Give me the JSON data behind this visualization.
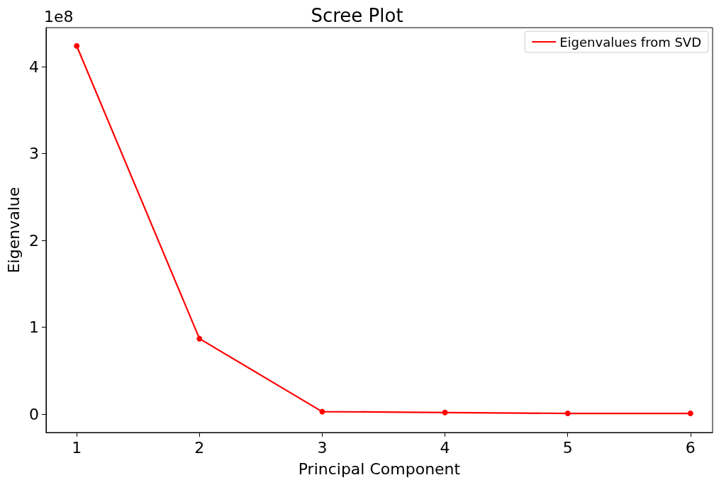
{
  "chart_data": {
    "type": "line",
    "title": "Scree Plot",
    "xlabel": "Principal Component",
    "ylabel": "Eigenvalue",
    "x": [
      1,
      2,
      3,
      4,
      5,
      6
    ],
    "series": [
      {
        "name": "Eigenvalues from SVD",
        "color": "#ff0000",
        "values": [
          4.24,
          0.87,
          0.03,
          0.02,
          0.01,
          0.01
        ]
      }
    ],
    "xlim": [
      0.75,
      6.18
    ],
    "xticks": [
      1,
      2,
      3,
      4,
      5,
      6
    ],
    "ylim": [
      -0.21,
      4.45
    ],
    "yticks": [
      0,
      1,
      2,
      3,
      4
    ],
    "annotations": [
      "1e8"
    ],
    "marker": "circle",
    "line_style": "solid",
    "legend": "top right",
    "grid": false
  }
}
